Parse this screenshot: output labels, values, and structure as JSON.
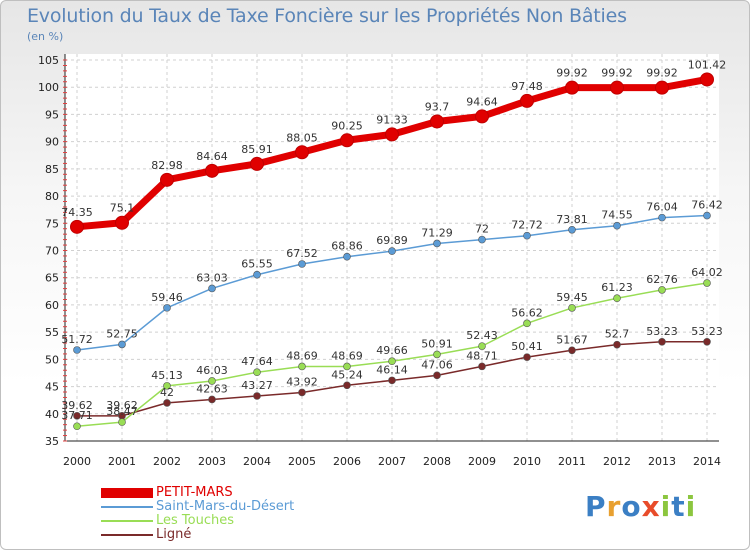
{
  "title": "Evolution du Taux de Taxe Foncière sur les Propriétés Non Bâties",
  "unit_label": "(en %)",
  "logo": {
    "text": "Proxiti",
    "letters": [
      "P",
      "r",
      "o",
      "x",
      "i",
      "t",
      "i"
    ],
    "colors": [
      "#3b7fc4",
      "#e8a030",
      "#3b7fc4",
      "#e84c2a",
      "#8cc63f",
      "#3b7fc4",
      "#8cc63f"
    ]
  },
  "chart_data": {
    "type": "line",
    "x": [
      "2000",
      "2001",
      "2002",
      "2003",
      "2004",
      "2005",
      "2006",
      "2007",
      "2008",
      "2009",
      "2010",
      "2011",
      "2012",
      "2013",
      "2014"
    ],
    "ylim": [
      35,
      105
    ],
    "yticks": [
      "35",
      "40",
      "45",
      "50",
      "55",
      "60",
      "65",
      "70",
      "75",
      "80",
      "85",
      "90",
      "95",
      "100",
      "105"
    ],
    "grid": true,
    "legend_position": "bottom-left",
    "series": [
      {
        "name": "PETIT-MARS",
        "color": "#e00000",
        "values": [
          74.35,
          75.1,
          82.98,
          84.64,
          85.91,
          88.05,
          90.25,
          91.33,
          93.7,
          94.64,
          97.48,
          99.92,
          99.92,
          99.92,
          101.42
        ],
        "labels": [
          "74.35",
          "75.1",
          "82.98",
          "84.64",
          "85.91",
          "88.05",
          "90.25",
          "91.33",
          "93.7",
          "94.64",
          "97.48",
          "99.92",
          "99.92",
          "99.92",
          "101.42"
        ]
      },
      {
        "name": "Saint-Mars-du-Désert",
        "color": "#5b9bd5",
        "values": [
          51.72,
          52.75,
          59.46,
          63.03,
          65.55,
          67.52,
          68.86,
          69.89,
          71.29,
          72,
          72.72,
          73.81,
          74.55,
          76.04,
          76.42
        ],
        "labels": [
          "51.72",
          "52.75",
          "59.46",
          "63.03",
          "65.55",
          "67.52",
          "68.86",
          "69.89",
          "71.29",
          "72",
          "72.72",
          "73.81",
          "74.55",
          "76.04",
          "76.42"
        ]
      },
      {
        "name": "Les Touches",
        "color": "#99dd55",
        "values": [
          37.71,
          38.47,
          45.13,
          46.03,
          47.64,
          48.69,
          48.69,
          49.66,
          50.91,
          52.43,
          56.62,
          59.45,
          61.23,
          62.76,
          64.02
        ],
        "labels": [
          "37.71",
          "38.47",
          "45.13",
          "46.03",
          "47.64",
          "48.69",
          "48.69",
          "49.66",
          "50.91",
          "52.43",
          "56.62",
          "59.45",
          "61.23",
          "62.76",
          "64.02"
        ]
      },
      {
        "name": "Ligné",
        "color": "#7a2a2a",
        "values": [
          39.62,
          39.62,
          42,
          42.63,
          43.27,
          43.92,
          45.24,
          46.14,
          47.06,
          48.71,
          50.41,
          51.67,
          52.7,
          53.23,
          53.23
        ],
        "labels": [
          "39.62",
          "39.62",
          "42",
          "42.63",
          "43.27",
          "43.92",
          "45.24",
          "46.14",
          "47.06",
          "48.71",
          "50.41",
          "51.67",
          "52.7",
          "53.23",
          "53.23"
        ]
      }
    ]
  }
}
